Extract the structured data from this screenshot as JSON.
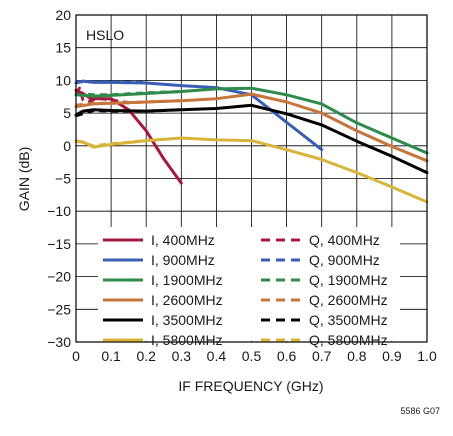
{
  "chart_data": {
    "type": "line",
    "xlabel": "IF FREQUENCY (GHz)",
    "ylabel": "GAIN (dB)",
    "xlim": [
      0,
      1.0
    ],
    "ylim": [
      -30,
      20
    ],
    "xticks": [
      "0",
      "0.1",
      "0.2",
      "0.3",
      "0.4",
      "0.5",
      "0.6",
      "0.7",
      "0.8",
      "0.9",
      "1.0"
    ],
    "yticks": [
      "20",
      "15",
      "10",
      "5",
      "0",
      "−5",
      "−10",
      "−15",
      "−20",
      "−25",
      "−30"
    ],
    "grid": true,
    "annotation": "HSLO",
    "figure_code": "5586 G07",
    "legend_position": "bottom-center",
    "series": [
      {
        "name": "I, 400MHz",
        "color": "#a31a3c",
        "style": "solid",
        "x": [
          0,
          0.02,
          0.04,
          0.06,
          0.1,
          0.15,
          0.2,
          0.25,
          0.3
        ],
        "y": [
          8.5,
          8.0,
          7.3,
          7.2,
          7.2,
          5.5,
          2.3,
          -2.0,
          -5.7
        ]
      },
      {
        "name": "Q, 400MHz",
        "color": "#a31a3c",
        "style": "dashed",
        "x": [
          0,
          0.01,
          0.02,
          0.04,
          0.06,
          0.1,
          0.15
        ],
        "y": [
          8.0,
          8.8,
          7.0,
          6.8,
          7.3,
          7.0,
          6.6
        ]
      },
      {
        "name": "I, 900MHz",
        "color": "#3a5eb5",
        "style": "solid",
        "x": [
          0,
          0.02,
          0.05,
          0.1,
          0.2,
          0.3,
          0.4,
          0.5,
          0.6,
          0.7
        ],
        "y": [
          9.6,
          9.9,
          9.7,
          9.7,
          9.6,
          9.2,
          8.9,
          7.8,
          3.6,
          -0.6
        ]
      },
      {
        "name": "Q, 900MHz",
        "color": "#3a5eb5",
        "style": "dashed",
        "x": [
          0,
          0.03,
          0.1,
          0.2
        ],
        "y": [
          9.8,
          9.8,
          9.8,
          9.7
        ]
      },
      {
        "name": "I, 1900MHz",
        "color": "#2e8b4c",
        "style": "solid",
        "x": [
          0,
          0.05,
          0.1,
          0.2,
          0.3,
          0.4,
          0.5,
          0.6,
          0.7,
          0.8,
          0.9,
          1.0
        ],
        "y": [
          7.8,
          7.6,
          7.7,
          8.0,
          8.3,
          8.7,
          8.8,
          7.8,
          6.4,
          3.5,
          1.2,
          -1.1
        ]
      },
      {
        "name": "Q, 1900MHz",
        "color": "#2e8b4c",
        "style": "dashed",
        "x": [
          0,
          0.05,
          0.1,
          0.2,
          0.3
        ],
        "y": [
          8.0,
          7.8,
          7.8,
          8.1,
          8.3
        ]
      },
      {
        "name": "I, 2600MHz",
        "color": "#c6753b",
        "style": "solid",
        "x": [
          0,
          0.05,
          0.1,
          0.2,
          0.3,
          0.4,
          0.5,
          0.6,
          0.7,
          0.8,
          0.9,
          1.0
        ],
        "y": [
          6.0,
          6.4,
          6.5,
          6.7,
          6.9,
          7.2,
          7.9,
          6.7,
          5.0,
          2.3,
          -0.1,
          -2.3
        ]
      },
      {
        "name": "Q, 2600MHz",
        "color": "#c6753b",
        "style": "dashed",
        "x": [
          0,
          0.05,
          0.1,
          0.2,
          0.3
        ],
        "y": [
          6.2,
          6.5,
          6.5,
          6.7,
          6.9
        ]
      },
      {
        "name": "I, 3500MHz",
        "color": "#000000",
        "style": "solid",
        "x": [
          0,
          0.02,
          0.05,
          0.1,
          0.2,
          0.3,
          0.4,
          0.5,
          0.6,
          0.7,
          0.8,
          0.9,
          1.0
        ],
        "y": [
          4.7,
          5.3,
          5.5,
          5.4,
          5.3,
          5.5,
          5.7,
          6.2,
          4.9,
          3.2,
          0.7,
          -1.6,
          -4.1
        ]
      },
      {
        "name": "Q, 3500MHz",
        "color": "#000000",
        "style": "dashed",
        "x": [
          0,
          0.05,
          0.1,
          0.2,
          0.3
        ],
        "y": [
          4.6,
          5.4,
          5.3,
          5.3,
          5.5
        ]
      },
      {
        "name": "I, 5800MHz",
        "color": "#d9b43a",
        "style": "solid",
        "x": [
          0,
          0.02,
          0.05,
          0.1,
          0.2,
          0.3,
          0.4,
          0.5,
          0.6,
          0.7,
          0.8,
          0.9,
          1.0
        ],
        "y": [
          0.7,
          0.6,
          -0.2,
          0.2,
          0.8,
          1.2,
          0.9,
          0.8,
          -0.6,
          -2.1,
          -4.1,
          -6.3,
          -8.6
        ]
      },
      {
        "name": "Q, 5800MHz",
        "color": "#d9b43a",
        "style": "dashed",
        "x": [
          0,
          0.05,
          0.1,
          0.2
        ],
        "y": [
          0.8,
          0.0,
          0.3,
          0.8
        ]
      }
    ]
  }
}
